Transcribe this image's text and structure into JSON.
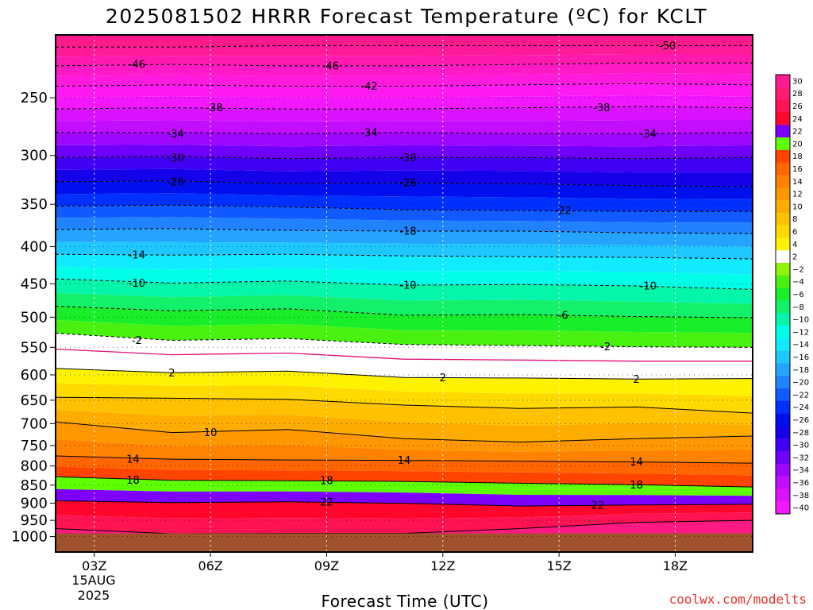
{
  "chart_data": {
    "type": "heatmap",
    "title": "2025081502 HRRR Forecast Temperature (ºC) for KCLT",
    "xlabel": "Forecast Time (UTC)",
    "ylabel": "",
    "credit": "coolwx.com/modelts",
    "x_ticks": [
      {
        "hour": 3,
        "label": "03Z"
      },
      {
        "hour": 6,
        "label": "06Z"
      },
      {
        "hour": 9,
        "label": "09Z"
      },
      {
        "hour": 12,
        "label": "12Z"
      },
      {
        "hour": 15,
        "label": "15Z"
      },
      {
        "hour": 18,
        "label": "18Z"
      }
    ],
    "x_date_label": [
      "15AUG",
      "2025"
    ],
    "xlim": [
      2,
      20
    ],
    "y_ticks": [
      250,
      300,
      350,
      400,
      450,
      500,
      550,
      600,
      650,
      700,
      750,
      800,
      850,
      900,
      950,
      1000
    ],
    "y_scale": "log-pressure",
    "ylim": [
      1050,
      205
    ],
    "surface_pressure": 990,
    "colorbar": {
      "levels": [
        -40,
        -38,
        -36,
        -34,
        -32,
        -30,
        -28,
        -26,
        -24,
        -22,
        -20,
        -18,
        -16,
        -14,
        -12,
        -10,
        -8,
        -6,
        -4,
        -2,
        2,
        4,
        6,
        8,
        10,
        12,
        14,
        16,
        18,
        20,
        22,
        24,
        26,
        28,
        30
      ],
      "labels": [
        "30",
        "28",
        "26",
        "24",
        "22",
        "20",
        "18",
        "16",
        "14",
        "12",
        "10",
        "8",
        "6",
        "4",
        "2",
        "−2",
        "−4",
        "−6",
        "−8",
        "−10",
        "−12",
        "−14",
        "−16",
        "−18",
        "−20",
        "−22",
        "−24",
        "−26",
        "−28",
        "−30",
        "−32",
        "−34",
        "−36",
        "−38",
        "−40"
      ]
    },
    "isotherms": [
      {
        "value": -50,
        "pressure": [
          213,
          213,
          212,
          212,
          212,
          212,
          212
        ]
      },
      {
        "value": -46,
        "pressure": [
          226,
          225,
          226,
          226,
          225,
          224,
          224
        ]
      },
      {
        "value": -42,
        "pressure": [
          241,
          240,
          241,
          241,
          240,
          239,
          240
        ]
      },
      {
        "value": -38,
        "pressure": [
          259,
          258,
          259,
          259,
          258,
          257,
          258
        ]
      },
      {
        "value": -34,
        "pressure": [
          279,
          279,
          280,
          279,
          280,
          280,
          279
        ]
      },
      {
        "value": -30,
        "pressure": [
          302,
          301,
          303,
          302,
          302,
          303,
          302
        ]
      },
      {
        "value": -26,
        "pressure": [
          326,
          325,
          328,
          327,
          328,
          330,
          331
        ]
      },
      {
        "value": -22,
        "pressure": [
          352,
          351,
          353,
          356,
          357,
          358,
          358
        ]
      },
      {
        "value": -18,
        "pressure": [
          379,
          378,
          380,
          381,
          381,
          383,
          384
        ]
      },
      {
        "value": -14,
        "pressure": [
          410,
          411,
          410,
          412,
          413,
          414,
          416
        ]
      },
      {
        "value": -10,
        "pressure": [
          443,
          449,
          446,
          452,
          451,
          453,
          458
        ]
      },
      {
        "value": -6,
        "pressure": [
          483,
          490,
          487,
          497,
          496,
          499,
          501
        ]
      },
      {
        "value": -2,
        "pressure": [
          526,
          538,
          535,
          545,
          547,
          549,
          550
        ]
      },
      {
        "value": 2,
        "pressure": [
          588,
          596,
          593,
          605,
          606,
          608,
          607
        ]
      },
      {
        "value": 6,
        "pressure": [
          644,
          646,
          648,
          660,
          667,
          664,
          677
        ]
      },
      {
        "value": 10,
        "pressure": [
          696,
          720,
          713,
          734,
          742,
          734,
          728
        ]
      },
      {
        "value": 14,
        "pressure": [
          775,
          783,
          785,
          786,
          788,
          790,
          793
        ]
      },
      {
        "value": 18,
        "pressure": [
          828,
          837,
          838,
          840,
          845,
          849,
          855
        ]
      },
      {
        "value": 22,
        "pressure": [
          893,
          898,
          896,
          900,
          908,
          905,
          903
        ]
      },
      {
        "value": 26,
        "pressure": [
          975,
          991,
          990,
          990,
          975,
          956,
          950
        ]
      }
    ],
    "isotherm_hours": [
      2,
      5,
      8,
      11,
      14,
      17,
      20
    ],
    "contour_labels": [
      {
        "value": "-50",
        "hour": 17.8,
        "pressure": 212
      },
      {
        "value": "-46",
        "hour": 4.1,
        "pressure": 225
      },
      {
        "value": "-46",
        "hour": 9.1,
        "pressure": 226
      },
      {
        "value": "-42",
        "hour": 10.1,
        "pressure": 241
      },
      {
        "value": "-38",
        "hour": 6.1,
        "pressure": 258
      },
      {
        "value": "-38",
        "hour": 16.1,
        "pressure": 258
      },
      {
        "value": "-34",
        "hour": 5.1,
        "pressure": 280
      },
      {
        "value": "-34",
        "hour": 10.1,
        "pressure": 279
      },
      {
        "value": "-34",
        "hour": 17.3,
        "pressure": 280
      },
      {
        "value": "-30",
        "hour": 5.1,
        "pressure": 302
      },
      {
        "value": "-30",
        "hour": 11.1,
        "pressure": 302
      },
      {
        "value": "-26",
        "hour": 5.1,
        "pressure": 326
      },
      {
        "value": "-26",
        "hour": 11.1,
        "pressure": 327
      },
      {
        "value": "-22",
        "hour": 15.1,
        "pressure": 357
      },
      {
        "value": "-18",
        "hour": 11.1,
        "pressure": 381
      },
      {
        "value": "-14",
        "hour": 4.1,
        "pressure": 411
      },
      {
        "value": "-10",
        "hour": 4.1,
        "pressure": 449
      },
      {
        "value": "-10",
        "hour": 11.1,
        "pressure": 452
      },
      {
        "value": "-10",
        "hour": 17.3,
        "pressure": 453
      },
      {
        "value": "-6",
        "hour": 15.1,
        "pressure": 497
      },
      {
        "value": "-2",
        "hour": 4.1,
        "pressure": 538
      },
      {
        "value": "-2",
        "hour": 16.2,
        "pressure": 549
      },
      {
        "value": "2",
        "hour": 5.0,
        "pressure": 596
      },
      {
        "value": "2",
        "hour": 12.0,
        "pressure": 605
      },
      {
        "value": "2",
        "hour": 17.0,
        "pressure": 608
      },
      {
        "value": "10",
        "hour": 6.0,
        "pressure": 720
      },
      {
        "value": "14",
        "hour": 4.0,
        "pressure": 783
      },
      {
        "value": "14",
        "hour": 11.0,
        "pressure": 786
      },
      {
        "value": "14",
        "hour": 17.0,
        "pressure": 790
      },
      {
        "value": "18",
        "hour": 4.0,
        "pressure": 837
      },
      {
        "value": "18",
        "hour": 9.0,
        "pressure": 838
      },
      {
        "value": "18",
        "hour": 17.0,
        "pressure": 849
      },
      {
        "value": "22",
        "hour": 9.0,
        "pressure": 896
      },
      {
        "value": "22",
        "hour": 16.0,
        "pressure": 905
      }
    ]
  }
}
